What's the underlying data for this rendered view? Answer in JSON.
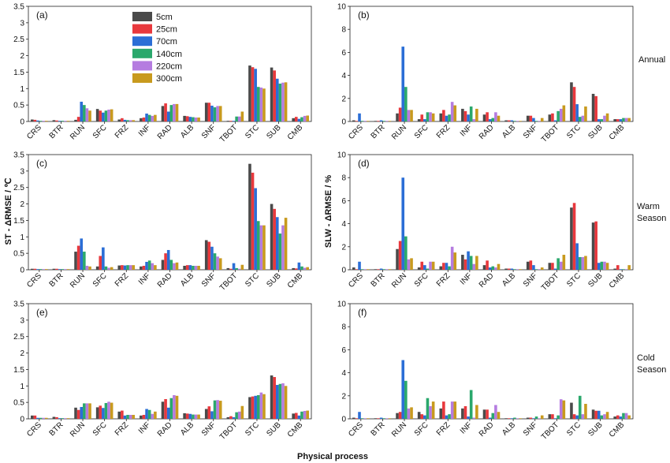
{
  "colors": [
    "#4a4a4a",
    "#e8383d",
    "#2b6ed6",
    "#2aa86c",
    "#b57ce0",
    "#c89a1e"
  ],
  "legend": [
    "5cm",
    "25cm",
    "70cm",
    "140cm",
    "220cm",
    "300cm"
  ],
  "categories": [
    "CRS",
    "BTR",
    "RUN",
    "SFC",
    "FRZ",
    "INF",
    "RAD",
    "ALB",
    "SNF",
    "TBOT",
    "STC",
    "SUB",
    "CMB"
  ],
  "season_labels": [
    "Annual",
    "Warm\nSeason",
    "Cold\nSeason"
  ],
  "xlabel": "Physical process",
  "ylabel_left": "ST - ΔRMSE / ℃",
  "ylabel_right": "SLW - ΔRMSE / %",
  "chart_data": [
    {
      "type": "bar",
      "label": "(a)",
      "ylim": [
        0,
        3.5
      ],
      "yticks": [
        0,
        0.5,
        1,
        1.5,
        2,
        2.5,
        3,
        3.5
      ],
      "categories": [
        "CRS",
        "BTR",
        "RUN",
        "SFC",
        "FRZ",
        "INF",
        "RAD",
        "ALB",
        "SNF",
        "TBOT",
        "STC",
        "SUB",
        "CMB"
      ],
      "series": [
        {
          "name": "5cm",
          "values": [
            0.06,
            0.04,
            0.05,
            0.38,
            0.06,
            0.1,
            0.47,
            0.17,
            0.57,
            0.02,
            1.7,
            1.64,
            0.1
          ]
        },
        {
          "name": "25cm",
          "values": [
            0.05,
            0.03,
            0.14,
            0.33,
            0.1,
            0.12,
            0.55,
            0.16,
            0.57,
            0.02,
            1.65,
            1.55,
            0.14
          ]
        },
        {
          "name": "70cm",
          "values": [
            0.03,
            0.02,
            0.6,
            0.27,
            0.05,
            0.24,
            0.3,
            0.14,
            0.48,
            0.02,
            1.6,
            1.3,
            0.08
          ]
        },
        {
          "name": "140cm",
          "values": [
            0.02,
            0.02,
            0.5,
            0.33,
            0.04,
            0.2,
            0.5,
            0.13,
            0.43,
            0.15,
            1.05,
            1.15,
            0.13
          ]
        },
        {
          "name": "220cm",
          "values": [
            0.02,
            0.02,
            0.4,
            0.36,
            0.04,
            0.17,
            0.53,
            0.12,
            0.47,
            0.15,
            1.03,
            1.18,
            0.17
          ]
        },
        {
          "name": "300cm",
          "values": [
            0.02,
            0.02,
            0.33,
            0.37,
            0.04,
            0.2,
            0.53,
            0.12,
            0.47,
            0.3,
            1.0,
            1.19,
            0.18
          ]
        }
      ]
    },
    {
      "type": "bar",
      "label": "(b)",
      "ylim": [
        0,
        10
      ],
      "yticks": [
        0,
        2,
        4,
        6,
        8,
        10
      ],
      "categories": [
        "CRS",
        "BTR",
        "RUN",
        "SFC",
        "FRZ",
        "INF",
        "RAD",
        "ALB",
        "SNF",
        "TBOT",
        "STC",
        "SUB",
        "CMB"
      ],
      "series": [
        {
          "name": "5cm",
          "values": [
            0.1,
            0.05,
            0.7,
            0.2,
            0.7,
            1.1,
            0.6,
            0.1,
            0.5,
            0.6,
            3.4,
            2.4,
            0.2
          ]
        },
        {
          "name": "25cm",
          "values": [
            0.05,
            0.05,
            1.2,
            0.6,
            1.0,
            0.9,
            0.8,
            0.1,
            0.5,
            0.7,
            3.0,
            2.2,
            0.2
          ]
        },
        {
          "name": "70cm",
          "values": [
            0.7,
            0.1,
            6.5,
            0.2,
            0.5,
            0.6,
            0.2,
            0.1,
            0.3,
            0.1,
            1.5,
            0.2,
            0.2
          ]
        },
        {
          "name": "140cm",
          "values": [
            0.05,
            0.05,
            3.0,
            0.8,
            0.6,
            1.3,
            0.3,
            0.05,
            0.05,
            0.9,
            0.4,
            0.2,
            0.3
          ]
        },
        {
          "name": "220cm",
          "values": [
            0.05,
            0.05,
            1.0,
            0.8,
            1.7,
            0.2,
            0.8,
            0.05,
            0.05,
            1.1,
            0.5,
            0.5,
            0.3
          ]
        },
        {
          "name": "300cm",
          "values": [
            0.05,
            0.05,
            1.0,
            0.7,
            1.4,
            1.1,
            0.5,
            0.05,
            0.3,
            1.4,
            1.3,
            0.7,
            0.3
          ]
        }
      ]
    },
    {
      "type": "bar",
      "label": "(c)",
      "ylim": [
        0,
        3.5
      ],
      "yticks": [
        0,
        0.5,
        1,
        1.5,
        2,
        2.5,
        3,
        3.5
      ],
      "categories": [
        "CRS",
        "BTR",
        "RUN",
        "SFC",
        "FRZ",
        "INF",
        "RAD",
        "ALB",
        "SNF",
        "TBOT",
        "STC",
        "SUB",
        "CMB"
      ],
      "series": [
        {
          "name": "5cm",
          "values": [
            0.03,
            0.03,
            0.55,
            0.1,
            0.13,
            0.1,
            0.3,
            0.12,
            0.9,
            0.05,
            3.22,
            2.0,
            0.05
          ]
        },
        {
          "name": "25cm",
          "values": [
            0.03,
            0.03,
            0.73,
            0.42,
            0.14,
            0.12,
            0.5,
            0.14,
            0.85,
            0.03,
            2.95,
            1.85,
            0.04
          ]
        },
        {
          "name": "70cm",
          "values": [
            0.02,
            0.02,
            0.95,
            0.68,
            0.13,
            0.24,
            0.6,
            0.14,
            0.7,
            0.2,
            2.48,
            1.6,
            0.22
          ]
        },
        {
          "name": "140cm",
          "values": [
            0.02,
            0.02,
            0.55,
            0.1,
            0.14,
            0.28,
            0.3,
            0.12,
            0.5,
            0.05,
            1.48,
            1.1,
            0.1
          ]
        },
        {
          "name": "220cm",
          "values": [
            0.02,
            0.02,
            0.12,
            0.06,
            0.14,
            0.2,
            0.2,
            0.12,
            0.4,
            0.03,
            1.35,
            1.35,
            0.06
          ]
        },
        {
          "name": "300cm",
          "values": [
            0.02,
            0.02,
            0.1,
            0.08,
            0.14,
            0.14,
            0.22,
            0.12,
            0.35,
            0.15,
            1.35,
            1.58,
            0.08
          ]
        }
      ]
    },
    {
      "type": "bar",
      "label": "(d)",
      "ylim": [
        0,
        10
      ],
      "yticks": [
        0,
        2,
        4,
        6,
        8,
        10
      ],
      "categories": [
        "CRS",
        "BTR",
        "RUN",
        "SFC",
        "FRZ",
        "INF",
        "RAD",
        "ALB",
        "SNF",
        "TBOT",
        "STC",
        "SUB",
        "CMB"
      ],
      "series": [
        {
          "name": "5cm",
          "values": [
            0.2,
            0.05,
            1.8,
            0.2,
            0.3,
            1.3,
            0.4,
            0.1,
            0.7,
            0.6,
            5.4,
            4.1,
            0.1
          ]
        },
        {
          "name": "25cm",
          "values": [
            0.05,
            0.05,
            2.5,
            0.7,
            0.6,
            0.9,
            0.8,
            0.1,
            0.8,
            0.6,
            5.8,
            4.2,
            0.4
          ]
        },
        {
          "name": "70cm",
          "values": [
            0.7,
            0.1,
            8.0,
            0.4,
            0.6,
            1.6,
            0.2,
            0.1,
            0.4,
            0.1,
            2.3,
            0.6,
            0.05
          ]
        },
        {
          "name": "140cm",
          "values": [
            0.05,
            0.05,
            2.9,
            0.1,
            0.3,
            1.2,
            0.3,
            0.05,
            0.05,
            1.0,
            1.1,
            0.7,
            0.05
          ]
        },
        {
          "name": "220cm",
          "values": [
            0.05,
            0.05,
            0.9,
            0.7,
            2.0,
            0.5,
            0.2,
            0.05,
            0.05,
            0.7,
            1.1,
            0.7,
            0.05
          ]
        },
        {
          "name": "300cm",
          "values": [
            0.05,
            0.05,
            1.0,
            0.7,
            1.5,
            1.2,
            0.5,
            0.05,
            0.2,
            1.3,
            1.2,
            0.6,
            0.4
          ]
        }
      ]
    },
    {
      "type": "bar",
      "label": "(e)",
      "ylim": [
        0,
        3.5
      ],
      "yticks": [
        0,
        0.5,
        1,
        1.5,
        2,
        2.5,
        3,
        3.5
      ],
      "categories": [
        "CRS",
        "BTR",
        "RUN",
        "SFC",
        "FRZ",
        "INF",
        "RAD",
        "ALB",
        "SNF",
        "TBOT",
        "STC",
        "SUB",
        "CMB"
      ],
      "series": [
        {
          "name": "5cm",
          "values": [
            0.1,
            0.06,
            0.34,
            0.35,
            0.22,
            0.1,
            0.52,
            0.17,
            0.3,
            0.05,
            0.66,
            1.32,
            0.16
          ]
        },
        {
          "name": "25cm",
          "values": [
            0.1,
            0.05,
            0.27,
            0.4,
            0.25,
            0.12,
            0.6,
            0.16,
            0.38,
            0.08,
            0.68,
            1.27,
            0.18
          ]
        },
        {
          "name": "70cm",
          "values": [
            0.03,
            0.02,
            0.36,
            0.33,
            0.1,
            0.3,
            0.34,
            0.15,
            0.23,
            0.05,
            0.7,
            1.03,
            0.1
          ]
        },
        {
          "name": "140cm",
          "values": [
            0.03,
            0.02,
            0.47,
            0.48,
            0.12,
            0.27,
            0.63,
            0.13,
            0.56,
            0.2,
            0.72,
            1.06,
            0.22
          ]
        },
        {
          "name": "220cm",
          "values": [
            0.03,
            0.02,
            0.47,
            0.52,
            0.12,
            0.15,
            0.72,
            0.13,
            0.57,
            0.22,
            0.8,
            1.08,
            0.24
          ]
        },
        {
          "name": "300cm",
          "values": [
            0.03,
            0.02,
            0.47,
            0.49,
            0.12,
            0.22,
            0.7,
            0.13,
            0.55,
            0.39,
            0.75,
            1.0,
            0.25
          ]
        }
      ]
    },
    {
      "type": "bar",
      "label": "(f)",
      "ylim": [
        0,
        10
      ],
      "yticks": [
        0,
        2,
        4,
        6,
        8,
        10
      ],
      "categories": [
        "CRS",
        "BTR",
        "RUN",
        "SFC",
        "FRZ",
        "INF",
        "RAD",
        "ALB",
        "SNF",
        "TBOT",
        "STC",
        "SUB",
        "CMB"
      ],
      "series": [
        {
          "name": "5cm",
          "values": [
            0.1,
            0.05,
            0.5,
            0.6,
            0.9,
            0.9,
            0.8,
            0.05,
            0.1,
            0.4,
            1.4,
            0.8,
            0.2
          ]
        },
        {
          "name": "25cm",
          "values": [
            0.05,
            0.05,
            0.6,
            0.4,
            1.5,
            1.1,
            0.8,
            0.05,
            0.1,
            0.4,
            0.4,
            0.7,
            0.3
          ]
        },
        {
          "name": "70cm",
          "values": [
            0.6,
            0.1,
            5.1,
            0.3,
            0.3,
            0.2,
            0.1,
            0.05,
            0.05,
            0.05,
            0.3,
            0.7,
            0.2
          ]
        },
        {
          "name": "140cm",
          "values": [
            0.05,
            0.05,
            3.3,
            1.8,
            0.4,
            2.5,
            0.5,
            0.1,
            0.2,
            0.3,
            2.0,
            0.3,
            0.5
          ]
        },
        {
          "name": "220cm",
          "values": [
            0.05,
            0.05,
            0.9,
            1.1,
            1.5,
            0.1,
            1.2,
            0.05,
            0.05,
            1.7,
            0.4,
            0.4,
            0.5
          ]
        },
        {
          "name": "300cm",
          "values": [
            0.05,
            0.05,
            1.0,
            1.5,
            1.5,
            1.2,
            0.6,
            0.05,
            0.3,
            1.6,
            1.3,
            0.6,
            0.3
          ]
        }
      ]
    }
  ]
}
